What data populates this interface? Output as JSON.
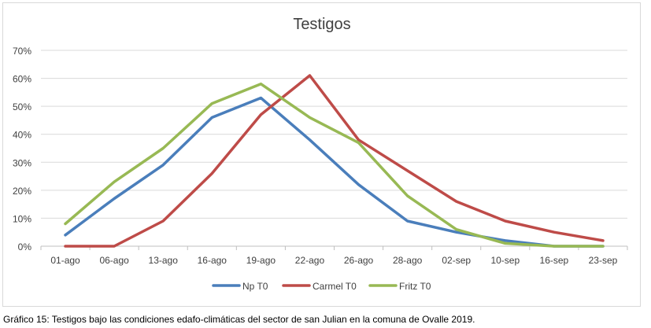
{
  "chart_data": {
    "type": "line",
    "title": "Testigos",
    "xlabel": "",
    "ylabel": "",
    "categories": [
      "01-ago",
      "06-ago",
      "13-ago",
      "16-ago",
      "19-ago",
      "22-ago",
      "26-ago",
      "28-ago",
      "02-sep",
      "10-sep",
      "16-sep",
      "23-sep"
    ],
    "ylim": [
      0,
      70
    ],
    "ytick_values": [
      0,
      10,
      20,
      30,
      40,
      50,
      60,
      70
    ],
    "ytick_labels": [
      "0%",
      "10%",
      "20%",
      "30%",
      "40%",
      "50%",
      "60%",
      "70%"
    ],
    "grid": true,
    "legend_position": "bottom",
    "series": [
      {
        "name": "Np T0",
        "color": "#4a7ebb",
        "values": [
          4,
          17,
          29,
          46,
          53,
          38,
          22,
          9,
          5,
          2,
          0,
          0
        ]
      },
      {
        "name": "Carmel T0",
        "color": "#be4b48",
        "values": [
          0,
          0,
          9,
          26,
          47,
          61,
          38,
          27,
          16,
          9,
          5,
          2
        ]
      },
      {
        "name": "Fritz T0",
        "color": "#98b954",
        "values": [
          8,
          23,
          35,
          51,
          58,
          46,
          37,
          18,
          6,
          1,
          0,
          0
        ]
      }
    ]
  },
  "caption": "Gráfico 15: Testigos bajo las condiciones edafo-climáticas del sector de san Julian en la comuna de Ovalle 2019."
}
